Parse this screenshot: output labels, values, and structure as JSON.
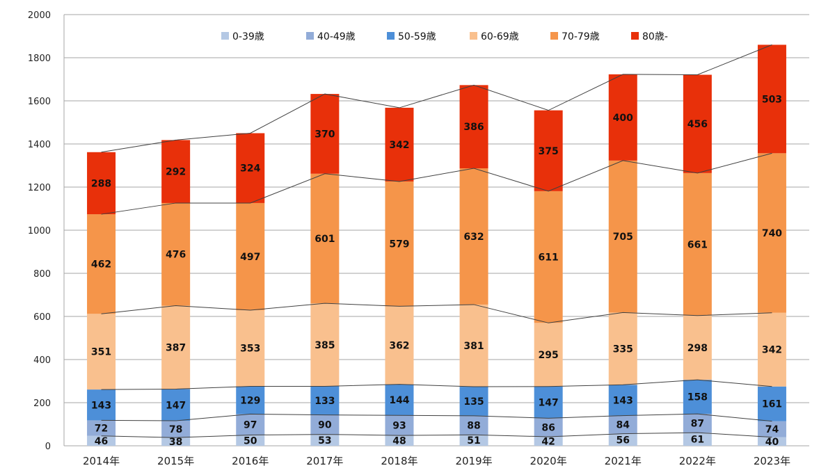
{
  "chart_data": {
    "type": "bar",
    "stacked": true,
    "categories": [
      "2014年",
      "2015年",
      "2016年",
      "2017年",
      "2018年",
      "2019年",
      "2020年",
      "2021年",
      "2022年",
      "2023年"
    ],
    "series": [
      {
        "name": "0-39歳",
        "color": "#b4c8e4",
        "values": [
          46,
          38,
          50,
          53,
          48,
          51,
          42,
          56,
          61,
          40
        ]
      },
      {
        "name": "40-49歳",
        "color": "#92acd8",
        "values": [
          72,
          78,
          97,
          90,
          93,
          88,
          86,
          84,
          87,
          74
        ]
      },
      {
        "name": "50-59歳",
        "color": "#4d8fd8",
        "values": [
          143,
          147,
          129,
          133,
          144,
          135,
          147,
          143,
          158,
          161
        ]
      },
      {
        "name": "60-69歳",
        "color": "#f9c08e",
        "values": [
          351,
          387,
          353,
          385,
          362,
          381,
          295,
          335,
          298,
          342
        ]
      },
      {
        "name": "70-79歳",
        "color": "#f5954a",
        "values": [
          462,
          476,
          497,
          601,
          579,
          632,
          611,
          705,
          661,
          740
        ]
      },
      {
        "name": "80歳-",
        "color": "#e8300a",
        "values": [
          288,
          292,
          324,
          370,
          342,
          386,
          375,
          400,
          456,
          503
        ]
      }
    ],
    "ylim": [
      0,
      2000
    ],
    "yticks": [
      0,
      200,
      400,
      600,
      800,
      1000,
      1200,
      1400,
      1600,
      1800,
      2000
    ],
    "grid": true,
    "legend_position": "top",
    "connector_lines": true
  }
}
